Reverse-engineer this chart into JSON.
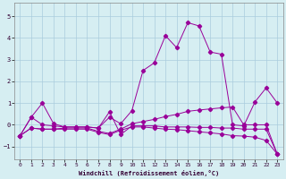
{
  "xlabel": "Windchill (Refroidissement éolien,°C)",
  "bg_color": "#d6eef2",
  "line_color": "#990099",
  "grid_color": "#aaccdd",
  "xlim": [
    -0.5,
    23.5
  ],
  "ylim": [
    -1.6,
    5.6
  ],
  "yticks": [
    -1,
    0,
    1,
    2,
    3,
    4,
    5
  ],
  "xticks": [
    0,
    1,
    2,
    3,
    4,
    5,
    6,
    7,
    8,
    9,
    10,
    11,
    12,
    13,
    14,
    15,
    16,
    17,
    18,
    19,
    20,
    21,
    22,
    23
  ],
  "series1_x": [
    0,
    1,
    2,
    3,
    4,
    5,
    6,
    7,
    8,
    9,
    10,
    11,
    12,
    13,
    14,
    15,
    16,
    17,
    18,
    19,
    20,
    21,
    22,
    23
  ],
  "series1_y": [
    -0.5,
    0.35,
    1.0,
    0.05,
    -0.1,
    -0.1,
    -0.1,
    -0.15,
    0.35,
    0.05,
    0.65,
    2.5,
    2.85,
    4.1,
    3.55,
    4.7,
    4.55,
    3.35,
    3.25,
    0.0,
    -0.05,
    1.05,
    1.7,
    1.0
  ],
  "series2_x": [
    0,
    1,
    2,
    3,
    4,
    5,
    6,
    7,
    8,
    9,
    10,
    11,
    12,
    13,
    14,
    15,
    16,
    17,
    18,
    19,
    20,
    21,
    22,
    23
  ],
  "series2_y": [
    -0.5,
    -0.15,
    -0.2,
    -0.2,
    -0.15,
    -0.15,
    -0.15,
    -0.3,
    -0.4,
    -0.2,
    0.05,
    0.15,
    0.25,
    0.38,
    0.48,
    0.62,
    0.68,
    0.73,
    0.78,
    0.82,
    0.0,
    0.0,
    0.0,
    -1.35
  ],
  "series3_x": [
    0,
    1,
    2,
    3,
    4,
    5,
    6,
    7,
    8,
    9,
    10,
    11,
    12,
    13,
    14,
    15,
    16,
    17,
    18,
    19,
    20,
    21,
    22,
    23
  ],
  "series3_y": [
    -0.5,
    -0.15,
    -0.2,
    -0.2,
    -0.2,
    -0.2,
    -0.2,
    -0.35,
    -0.45,
    -0.25,
    -0.1,
    -0.1,
    -0.15,
    -0.2,
    -0.22,
    -0.27,
    -0.32,
    -0.37,
    -0.42,
    -0.5,
    -0.52,
    -0.57,
    -0.72,
    -1.35
  ],
  "series4_x": [
    0,
    1,
    2,
    3,
    4,
    5,
    6,
    7,
    8,
    9,
    10,
    11,
    12,
    13,
    14,
    15,
    16,
    17,
    18,
    19,
    20,
    21,
    22,
    23
  ],
  "series4_y": [
    -0.5,
    0.35,
    0.0,
    -0.05,
    -0.1,
    -0.1,
    -0.1,
    -0.15,
    0.6,
    -0.45,
    -0.05,
    -0.05,
    -0.05,
    -0.1,
    -0.1,
    -0.1,
    -0.12,
    -0.12,
    -0.15,
    -0.15,
    -0.2,
    -0.2,
    -0.2,
    -1.35
  ]
}
